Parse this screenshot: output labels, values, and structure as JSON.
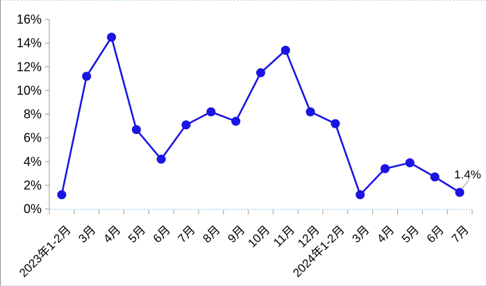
{
  "chart_data": {
    "type": "line",
    "title": "",
    "xlabel": "",
    "ylabel": "",
    "categories": [
      "2023年1-2月",
      "3月",
      "4月",
      "5月",
      "6月",
      "7月",
      "8月",
      "9月",
      "10月",
      "11月",
      "12月",
      "2024年1-2月",
      "3月",
      "4月",
      "5月",
      "6月",
      "7月"
    ],
    "values": [
      1.2,
      11.2,
      14.5,
      6.7,
      4.2,
      7.1,
      8.2,
      7.4,
      11.5,
      13.4,
      8.2,
      7.2,
      1.2,
      3.4,
      3.9,
      2.7,
      1.4
    ],
    "ylim": [
      0,
      16
    ],
    "ytick_step": 2,
    "ytick_suffix": "%",
    "grid": false,
    "legend": false,
    "x_label_rotation_deg": -45,
    "annotation": {
      "text": "1.4%",
      "point_index": 16
    },
    "colors": {
      "line": "#1a15e2",
      "marker": "#1a15e2",
      "axis": "#a6a6a6",
      "zero_line": "#aed0ea",
      "leader": "#a6a6a6",
      "text": "#000000",
      "background": "#ffffff"
    }
  }
}
